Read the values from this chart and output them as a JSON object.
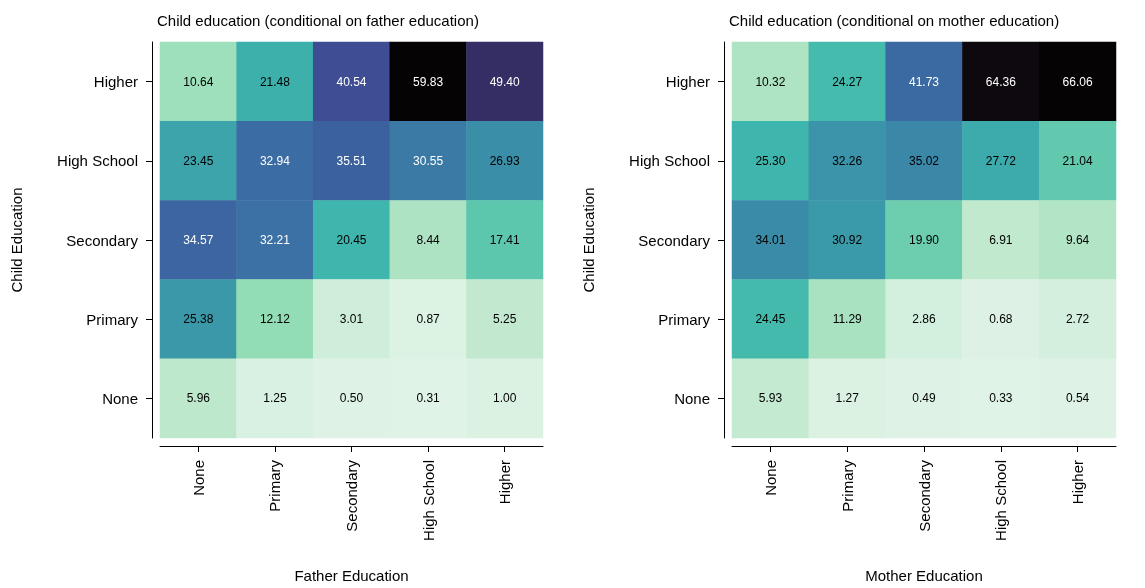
{
  "chart_data": [
    {
      "type": "heatmap",
      "title": "Child education (conditional on father education)",
      "xlabel": "Father Education",
      "ylabel": "Child Education",
      "categories": [
        "None",
        "Primary",
        "Secondary",
        "High School",
        "Higher"
      ],
      "y_categories": [
        "Higher",
        "High School",
        "Secondary",
        "Primary",
        "None"
      ],
      "colors": [
        "#dff3e6",
        "#b8e6c8",
        "#88dbb0",
        "#3fb8ad",
        "#3a8fa8",
        "#3b6aa3",
        "#3e4f96",
        "#3a3a82",
        "#2e1e3a",
        "#050303"
      ],
      "cells": [
        [
          10.64,
          21.48,
          40.54,
          59.83,
          49.4
        ],
        [
          23.45,
          32.94,
          35.51,
          30.55,
          26.93
        ],
        [
          34.57,
          32.21,
          20.45,
          8.44,
          17.41
        ],
        [
          25.38,
          12.12,
          3.01,
          0.87,
          5.25
        ],
        [
          5.96,
          1.25,
          0.5,
          0.31,
          1.0
        ]
      ],
      "cell_labels": [
        [
          "10.64",
          "21.48",
          "40.54",
          "59.83",
          "49.40"
        ],
        [
          "23.45",
          "32.94",
          "35.51",
          "30.55",
          "26.93"
        ],
        [
          "34.57",
          "32.21",
          "20.45",
          "8.44",
          "17.41"
        ],
        [
          "25.38",
          "12.12",
          "3.01",
          "0.87",
          "5.25"
        ],
        [
          "5.96",
          "1.25",
          "0.50",
          "0.31",
          "1.00"
        ]
      ]
    },
    {
      "type": "heatmap",
      "title": "Child education (conditional on mother education)",
      "xlabel": "Mother Education",
      "ylabel": "Child Education",
      "categories": [
        "None",
        "Primary",
        "Secondary",
        "High School",
        "Higher"
      ],
      "y_categories": [
        "Higher",
        "High School",
        "Secondary",
        "Primary",
        "None"
      ],
      "colors": [
        "#dff3e6",
        "#b8e6c8",
        "#88dbb0",
        "#3fb8ad",
        "#3a8fa8",
        "#3b6aa3",
        "#3e4f96",
        "#2e1e3a",
        "#050303"
      ],
      "cells": [
        [
          10.32,
          24.27,
          41.73,
          64.36,
          66.06
        ],
        [
          25.3,
          32.26,
          35.02,
          27.72,
          21.04
        ],
        [
          34.01,
          30.92,
          19.9,
          6.91,
          9.64
        ],
        [
          24.45,
          11.29,
          2.86,
          0.68,
          2.72
        ],
        [
          5.93,
          1.27,
          0.49,
          0.33,
          0.54
        ]
      ],
      "cell_labels": [
        [
          "10.32",
          "24.27",
          "41.73",
          "64.36",
          "66.06"
        ],
        [
          "25.30",
          "32.26",
          "35.02",
          "27.72",
          "21.04"
        ],
        [
          "34.01",
          "30.92",
          "19.90",
          "6.91",
          "9.64"
        ],
        [
          "24.45",
          "11.29",
          "2.86",
          "0.68",
          "2.72"
        ],
        [
          "5.93",
          "1.27",
          "0.49",
          "0.33",
          "0.54"
        ]
      ]
    }
  ]
}
